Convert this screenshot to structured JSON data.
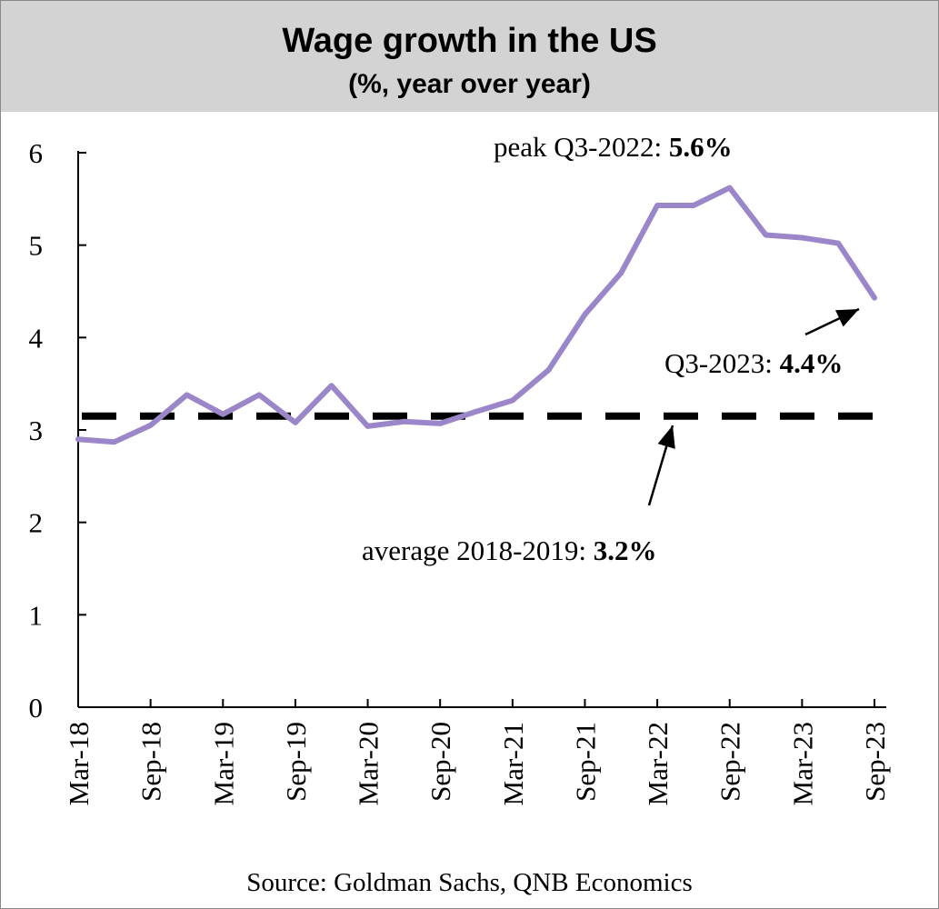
{
  "chart_data": {
    "type": "line",
    "title": "Wage growth in the US",
    "subtitle": "(%, year over year)",
    "xlabel": "",
    "ylabel": "",
    "ylim": [
      0,
      6
    ],
    "yticks": [
      "0",
      "1",
      "2",
      "3",
      "4",
      "5",
      "6"
    ],
    "xtick_labels": [
      "Mar-18",
      "Sep-18",
      "Mar-19",
      "Sep-19",
      "Mar-20",
      "Sep-20",
      "Mar-21",
      "Sep-21",
      "Mar-22",
      "Sep-22",
      "Mar-23",
      "Sep-23"
    ],
    "series": [
      {
        "name": "Wage growth",
        "color": "#9a86c8",
        "x": [
          "Mar-18",
          "Jun-18",
          "Sep-18",
          "Dec-18",
          "Mar-19",
          "Jun-19",
          "Sep-19",
          "Dec-19",
          "Mar-20",
          "Jun-20",
          "Sep-20",
          "Dec-20",
          "Mar-21",
          "Jun-21",
          "Sep-21",
          "Dec-21",
          "Mar-22",
          "Jun-22",
          "Sep-22",
          "Dec-22",
          "Mar-23",
          "Jun-23",
          "Sep-23"
        ],
        "values": [
          2.9,
          2.87,
          3.05,
          3.38,
          3.17,
          3.38,
          3.08,
          3.48,
          3.04,
          3.09,
          3.07,
          3.2,
          3.32,
          3.65,
          4.25,
          4.7,
          5.43,
          5.43,
          5.62,
          5.11,
          5.08,
          5.02,
          4.43
        ]
      }
    ],
    "reference_line": {
      "name": "average 2018-2019",
      "value": 3.15,
      "style": "dashed"
    },
    "annotations": {
      "peak": {
        "label": "peak Q3-2022: ",
        "value": "5.6%"
      },
      "latest": {
        "label": "Q3-2023: ",
        "value": "4.4%"
      },
      "average": {
        "label": "average 2018-2019: ",
        "value": "3.2%"
      }
    },
    "source": "Source: Goldman Sachs, QNB Economics"
  }
}
